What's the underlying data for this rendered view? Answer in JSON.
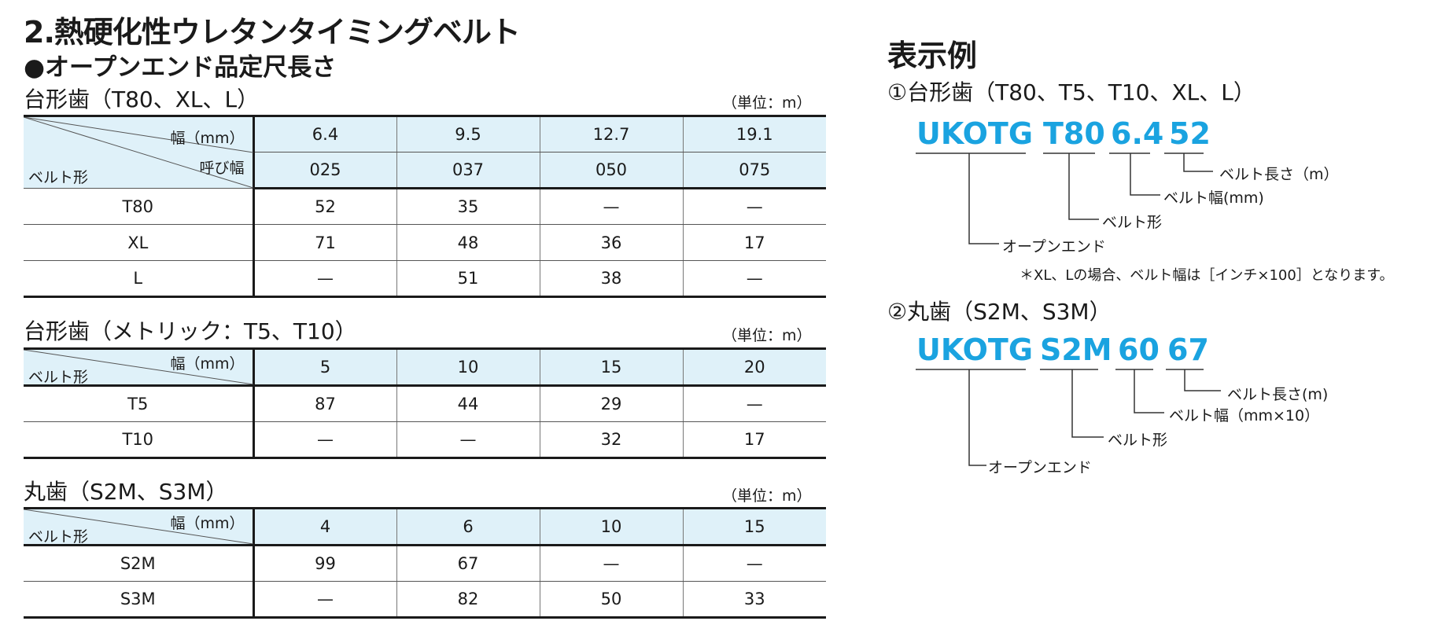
{
  "heading": "2.熱硬化性ウレタンタイミングベルト",
  "subheading": "●オープンエンド品定尺長さ",
  "tables": [
    {
      "title": "台形歯（T80、XL、L）",
      "unit": "（単位：m）",
      "width_label": "幅（mm）",
      "nominal_label": "呼び幅",
      "belt_label": "ベルト形",
      "widths": [
        "6.4",
        "9.5",
        "12.7",
        "19.1"
      ],
      "nominals": [
        "025",
        "037",
        "050",
        "075"
      ],
      "rows": [
        {
          "name": "T80",
          "values": [
            "52",
            "35",
            "—",
            "—"
          ]
        },
        {
          "name": "XL",
          "values": [
            "71",
            "48",
            "36",
            "17"
          ]
        },
        {
          "name": "L",
          "values": [
            "—",
            "51",
            "38",
            "—"
          ]
        }
      ]
    },
    {
      "title": "台形歯（メトリック：T5、T10）",
      "unit": "（単位：m）",
      "width_label": "幅（mm）",
      "belt_label": "ベルト形",
      "widths": [
        "5",
        "10",
        "15",
        "20"
      ],
      "rows": [
        {
          "name": "T5",
          "values": [
            "87",
            "44",
            "29",
            "—"
          ]
        },
        {
          "name": "T10",
          "values": [
            "—",
            "—",
            "32",
            "17"
          ]
        }
      ]
    },
    {
      "title": "丸歯（S2M、S3M）",
      "unit": "（単位：m）",
      "width_label": "幅（mm）",
      "belt_label": "ベルト形",
      "widths": [
        "4",
        "6",
        "10",
        "15"
      ],
      "rows": [
        {
          "name": "S2M",
          "values": [
            "99",
            "67",
            "—",
            "—"
          ]
        },
        {
          "name": "S3M",
          "values": [
            "—",
            "82",
            "50",
            "33"
          ]
        }
      ]
    }
  ],
  "example": {
    "title": "表示例",
    "ex1": {
      "subtitle": "①台形歯（T80、T5、T10、XL、L）",
      "codes": [
        "UKOTG",
        "T80",
        "6.4",
        "52"
      ],
      "labels": [
        "ベルト長さ（m）",
        "ベルト幅(mm)",
        "ベルト形",
        "オープンエンド"
      ],
      "note": "＊XL、Lの場合、ベルト幅は［インチ×100］となります。"
    },
    "ex2": {
      "subtitle": "②丸歯（S2M、S3M）",
      "codes": [
        "UKOTG",
        "S2M",
        "60",
        "67"
      ],
      "labels": [
        "ベルト長さ(m)",
        "ベルト幅（mm×10）",
        "ベルト形",
        "オープンエンド"
      ]
    }
  },
  "colors": {
    "header_bg": "#dff1f9",
    "code_blue": "#1aa3e0"
  }
}
